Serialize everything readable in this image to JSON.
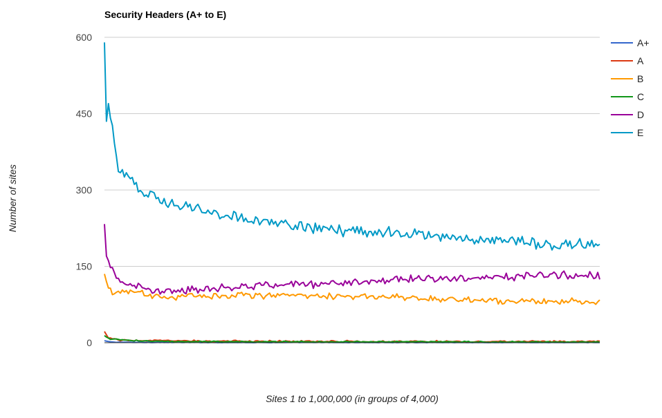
{
  "chart_data": {
    "type": "line",
    "title": "Security Headers (A+ to E)",
    "xlabel": "Sites 1 to 1,000,000 (in groups of 4,000)",
    "ylabel": "Number of sites",
    "x_count": 250,
    "ylim": [
      0,
      600
    ],
    "yticks": [
      0,
      150,
      300,
      450,
      600
    ],
    "y_tick_labels": [
      "0",
      "150",
      "300",
      "450",
      "600"
    ],
    "grid": true,
    "legend_position": "right",
    "series": [
      {
        "name": "A+",
        "color": "#3366cc",
        "anchors": [
          [
            1,
            4
          ],
          [
            3,
            2
          ],
          [
            6,
            1
          ],
          [
            20,
            0.6
          ],
          [
            60,
            0.4
          ],
          [
            250,
            0.3
          ]
        ],
        "noise": 0.5
      },
      {
        "name": "A",
        "color": "#dc3912",
        "anchors": [
          [
            1,
            22
          ],
          [
            3,
            9
          ],
          [
            8,
            5
          ],
          [
            20,
            4
          ],
          [
            60,
            3
          ],
          [
            150,
            2.5
          ],
          [
            250,
            2
          ]
        ],
        "noise": 2
      },
      {
        "name": "B",
        "color": "#ff9900",
        "anchors": [
          [
            1,
            135
          ],
          [
            3,
            105
          ],
          [
            5,
            95
          ],
          [
            10,
            102
          ],
          [
            30,
            90
          ],
          [
            60,
            93
          ],
          [
            100,
            94
          ],
          [
            130,
            90
          ],
          [
            150,
            88
          ],
          [
            180,
            85
          ],
          [
            210,
            82
          ],
          [
            250,
            80
          ]
        ],
        "noise": 8
      },
      {
        "name": "C",
        "color": "#109618",
        "anchors": [
          [
            1,
            14
          ],
          [
            3,
            8
          ],
          [
            8,
            6
          ],
          [
            20,
            3
          ],
          [
            60,
            2
          ],
          [
            250,
            1.5
          ]
        ],
        "noise": 1.5
      },
      {
        "name": "D",
        "color": "#990099",
        "anchors": [
          [
            1,
            233
          ],
          [
            2,
            170
          ],
          [
            4,
            152
          ],
          [
            6,
            130
          ],
          [
            10,
            115
          ],
          [
            30,
            102
          ],
          [
            60,
            108
          ],
          [
            100,
            115
          ],
          [
            130,
            120
          ],
          [
            150,
            125
          ],
          [
            180,
            128
          ],
          [
            210,
            131
          ],
          [
            250,
            132
          ]
        ],
        "noise": 10
      },
      {
        "name": "E",
        "color": "#0099c6",
        "anchors": [
          [
            1,
            590
          ],
          [
            2,
            435
          ],
          [
            3,
            465
          ],
          [
            5,
            420
          ],
          [
            8,
            330
          ],
          [
            12,
            335
          ],
          [
            20,
            295
          ],
          [
            30,
            280
          ],
          [
            40,
            268
          ],
          [
            50,
            260
          ],
          [
            60,
            252
          ],
          [
            80,
            240
          ],
          [
            100,
            228
          ],
          [
            130,
            218
          ],
          [
            150,
            215
          ],
          [
            170,
            208
          ],
          [
            200,
            200
          ],
          [
            220,
            195
          ],
          [
            250,
            192
          ]
        ],
        "noise": 13
      }
    ]
  }
}
